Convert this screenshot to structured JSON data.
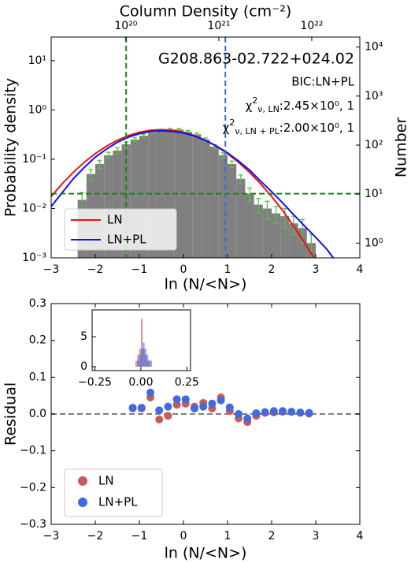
{
  "chart_data": [
    {
      "type": "histogram",
      "x2label": "Column Density (cm⁻²)",
      "xlabel": "ln (N/<N>)",
      "ylabel": "Probability density",
      "y2label": "Number",
      "xlim": [
        -3,
        4
      ],
      "xticks": [
        {
          "value": -3,
          "label": "−3"
        },
        {
          "value": -2,
          "label": "−2"
        },
        {
          "value": -1,
          "label": "−1"
        },
        0,
        1,
        2,
        3,
        4
      ],
      "ylim": [
        0.001,
        30
      ],
      "log_y": true,
      "yticks": [
        {
          "value": 0.001,
          "label": "10⁻³"
        },
        {
          "value": 0.01,
          "label": "10⁻²"
        },
        {
          "value": 0.1,
          "label": "10⁻¹"
        },
        {
          "value": 1,
          "label": "10⁰"
        },
        {
          "value": 10,
          "label": "10¹"
        }
      ],
      "y2lim": [
        0.5,
        16000
      ],
      "log_y2": true,
      "y2ticks": [
        {
          "value": 1,
          "label": "10⁰"
        },
        {
          "value": 10,
          "label": "10¹"
        },
        {
          "value": 100,
          "label": "10²"
        },
        {
          "value": 1000,
          "label": "10³"
        },
        {
          "value": 10000,
          "label": "10⁴"
        }
      ],
      "x2lim": [
        1.57e+19,
        3.29e+22
      ],
      "log_x2": true,
      "x2ticks": [
        {
          "value": 1e+20,
          "label": "10²⁰"
        },
        {
          "value": 1e+21,
          "label": "10²¹"
        },
        {
          "value": 1e+22,
          "label": "10²²"
        }
      ],
      "bins": [
        -2.4,
        -2.2,
        -2.0,
        -1.8,
        -1.6,
        -1.4,
        -1.2,
        -1.0,
        -0.8,
        -0.6,
        -0.4,
        -0.2,
        0.0,
        0.2,
        0.4,
        0.6,
        0.8,
        1.0,
        1.2,
        1.4,
        1.6,
        1.8,
        2.0,
        2.2,
        2.4,
        2.6,
        2.8,
        3.0
      ],
      "values": [
        0.015,
        0.05,
        0.08,
        0.12,
        0.15,
        0.2,
        0.25,
        0.3,
        0.35,
        0.38,
        0.4,
        0.4,
        0.36,
        0.32,
        0.25,
        0.18,
        0.12,
        0.08,
        0.04,
        0.02,
        0.012,
        0.01,
        0.008,
        0.007,
        0.005,
        0.004,
        0.002
      ],
      "errors": [
        0.006,
        0.012,
        0.015,
        0.018,
        0.02,
        0.022,
        0.022,
        0.022,
        0.022,
        0.022,
        0.022,
        0.022,
        0.022,
        0.02,
        0.02,
        0.018,
        0.015,
        0.012,
        0.008,
        0.006,
        0.004,
        0.004,
        0.003,
        0.003,
        0.002,
        0.002,
        0.001
      ],
      "color": "#808080",
      "error_color": "#55c047",
      "series": [
        {
          "name": "LN",
          "color": "#ee1111",
          "x": [
            -3,
            -2.75,
            -2.5,
            -2.25,
            -2,
            -1.75,
            -1.5,
            -1.25,
            -1,
            -0.75,
            -0.5,
            -0.25,
            0,
            0.25,
            0.5,
            0.75,
            1,
            1.25,
            1.5,
            1.75,
            2,
            2.25,
            2.5,
            2.75,
            3
          ],
          "values": [
            0.0175,
            0.0318,
            0.054,
            0.0864,
            0.13,
            0.183,
            0.242,
            0.301,
            0.352,
            0.387,
            0.399,
            0.387,
            0.352,
            0.301,
            0.242,
            0.183,
            0.13,
            0.0864,
            0.054,
            0.0318,
            0.0175,
            0.0091,
            0.0044,
            0.002,
            0.00087
          ]
        },
        {
          "name": "LN+PL",
          "color": "#1111ee",
          "x": [
            -3,
            -2.75,
            -2.5,
            -2.25,
            -2,
            -1.75,
            -1.5,
            -1.25,
            -1,
            -0.75,
            -0.5,
            -0.25,
            0,
            0.25,
            0.5,
            0.75,
            1,
            1.25,
            1.5,
            1.75,
            2,
            2.25,
            2.5,
            2.75,
            3,
            3.25,
            3.4
          ],
          "values": [
            0.011,
            0.021,
            0.04,
            0.068,
            0.11,
            0.16,
            0.22,
            0.28,
            0.33,
            0.365,
            0.375,
            0.365,
            0.34,
            0.295,
            0.24,
            0.185,
            0.135,
            0.092,
            0.06,
            0.036,
            0.022,
            0.013,
            0.0075,
            0.0044,
            0.0026,
            0.0015,
            0.001
          ]
        }
      ],
      "vlines": [
        {
          "x": -1.3,
          "color": "#138a13"
        },
        {
          "x": 0.95,
          "color": "#3b6fd0"
        }
      ],
      "hline": {
        "y": 0.02,
        "color": "#138a13"
      },
      "annotations": {
        "name": "G208.863-02.722+024.02",
        "bic": "BIC:LN+PL",
        "chi": [
          {
            "symbol": "χ",
            "sup": "2",
            "sub": "ν, LN",
            "text": ":2.45×10⁰, 1"
          },
          {
            "symbol": "χ",
            "sup": "2",
            "sub": "ν, LN + PL",
            "text": ":2.00×10⁰, 1"
          }
        ]
      },
      "legend": "lower left"
    },
    {
      "type": "scatter",
      "xlabel": "ln (N/<N>)",
      "ylabel": "Residual",
      "xlim": [
        -3,
        4
      ],
      "xticks": [
        {
          "value": -3,
          "label": "−3"
        },
        {
          "value": -2,
          "label": "−2"
        },
        {
          "value": -1,
          "label": "−1"
        },
        0,
        1,
        2,
        3,
        4
      ],
      "ylim": [
        -0.3,
        0.3
      ],
      "yticks": [
        {
          "value": -0.3,
          "label": "−0.3"
        },
        {
          "value": -0.2,
          "label": "−0.2"
        },
        {
          "value": -0.1,
          "label": "−0.1"
        },
        {
          "value": 0,
          "label": "0.0"
        },
        0.1,
        0.2,
        0.3
      ],
      "hline": 0,
      "series": [
        {
          "name": "LN",
          "color": "#c85a5a",
          "x": [
            -1.15,
            -0.95,
            -0.75,
            -0.55,
            -0.35,
            -0.15,
            0.05,
            0.25,
            0.45,
            0.65,
            0.85,
            1.05,
            1.25,
            1.45,
            1.65,
            1.85,
            2.05,
            2.25,
            2.45,
            2.65,
            2.85
          ],
          "values": [
            0.015,
            0.015,
            0.045,
            -0.015,
            -0.005,
            0.025,
            0.028,
            0.02,
            0.03,
            0.015,
            0.045,
            0.008,
            -0.012,
            -0.022,
            -0.005,
            0.003,
            0.004,
            0.006,
            0.006,
            0.003,
            0.001
          ]
        },
        {
          "name": "LN+PL",
          "color": "#4169e1",
          "x": [
            -1.15,
            -0.95,
            -0.75,
            -0.55,
            -0.35,
            -0.15,
            0.05,
            0.25,
            0.45,
            0.65,
            0.85,
            1.05,
            1.25,
            1.45,
            1.65,
            1.85,
            2.05,
            2.25,
            2.45,
            2.65,
            2.85
          ],
          "values": [
            0.017,
            0.017,
            0.058,
            0.01,
            0.02,
            0.04,
            0.04,
            0.015,
            0.02,
            0.028,
            0.037,
            0.018,
            0.0,
            -0.012,
            0.002,
            0.005,
            0.008,
            0.008,
            0.006,
            0.004,
            0.003
          ]
        }
      ],
      "legend": "lower left"
    },
    {
      "type": "histogram",
      "inset": true,
      "xlim": [
        -0.265,
        0.27
      ],
      "xticks": [
        {
          "value": -0.25,
          "label": "−0.25"
        },
        {
          "value": 0,
          "label": "0.00"
        },
        {
          "value": 0.25,
          "label": "0.25"
        }
      ],
      "ylim": [
        -0.66,
        9.5
      ],
      "yticks": [
        0,
        5
      ],
      "bins": [
        -0.03,
        -0.02,
        -0.01,
        0.0,
        0.01,
        0.02,
        0.03,
        0.04,
        0.05,
        0.06
      ],
      "series": [
        {
          "color": "#c85a5a",
          "values": [
            1,
            2,
            3,
            8,
            3,
            2,
            1,
            1,
            0
          ]
        },
        {
          "color": "#4169e1",
          "values": [
            0,
            1,
            2,
            3,
            4,
            3,
            2,
            1,
            1
          ]
        }
      ]
    }
  ]
}
